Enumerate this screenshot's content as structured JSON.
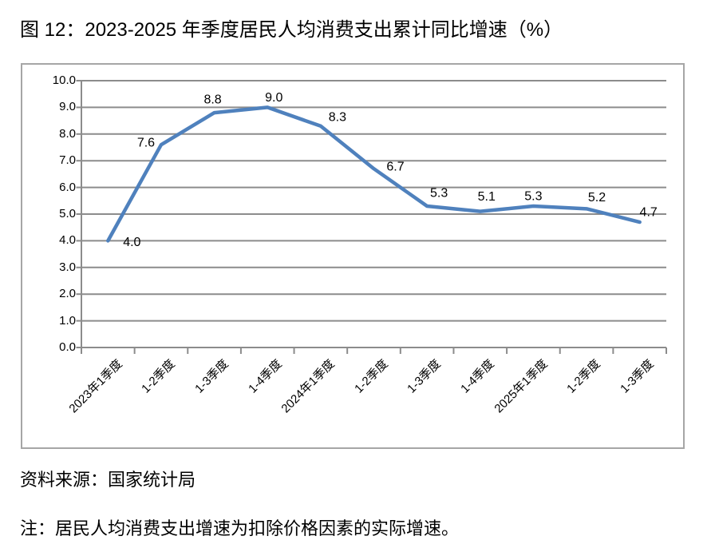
{
  "title": "图 12：2023-2025 年季度居民人均消费支出累计同比增速（%）",
  "source_note": "资料来源：国家统计局",
  "footnote": "注：居民人均消费支出增速为扣除价格因素的实际增速。",
  "chart_data": {
    "type": "line",
    "title": "",
    "xlabel": "",
    "ylabel": "",
    "categories": [
      "2023年1季度",
      "1-2季度",
      "1-3季度",
      "1-4季度",
      "2024年1季度",
      "1-2季度",
      "1-3季度",
      "1-4季度",
      "2025年1季度",
      "1-2季度",
      "1-3季度"
    ],
    "values": [
      4.0,
      7.6,
      8.8,
      9.0,
      8.3,
      6.7,
      5.3,
      5.1,
      5.3,
      5.2,
      4.7
    ],
    "data_labels": [
      "4.0",
      "7.6",
      "8.8",
      "9.0",
      "8.3",
      "6.7",
      "5.3",
      "5.1",
      "5.3",
      "5.2",
      "4.7"
    ],
    "ylim": [
      0.0,
      10.0
    ],
    "ytick_step": 1.0,
    "ytick_labels": [
      "0.0",
      "1.0",
      "2.0",
      "3.0",
      "4.0",
      "5.0",
      "6.0",
      "7.0",
      "8.0",
      "9.0",
      "10.0"
    ],
    "grid": true,
    "legend": "none",
    "colors": {
      "line": "#4f81bd",
      "grid": "#8c8c8c",
      "axis": "#8c8c8c",
      "frame_border": "#a6a6a6",
      "text": "#000000"
    }
  }
}
